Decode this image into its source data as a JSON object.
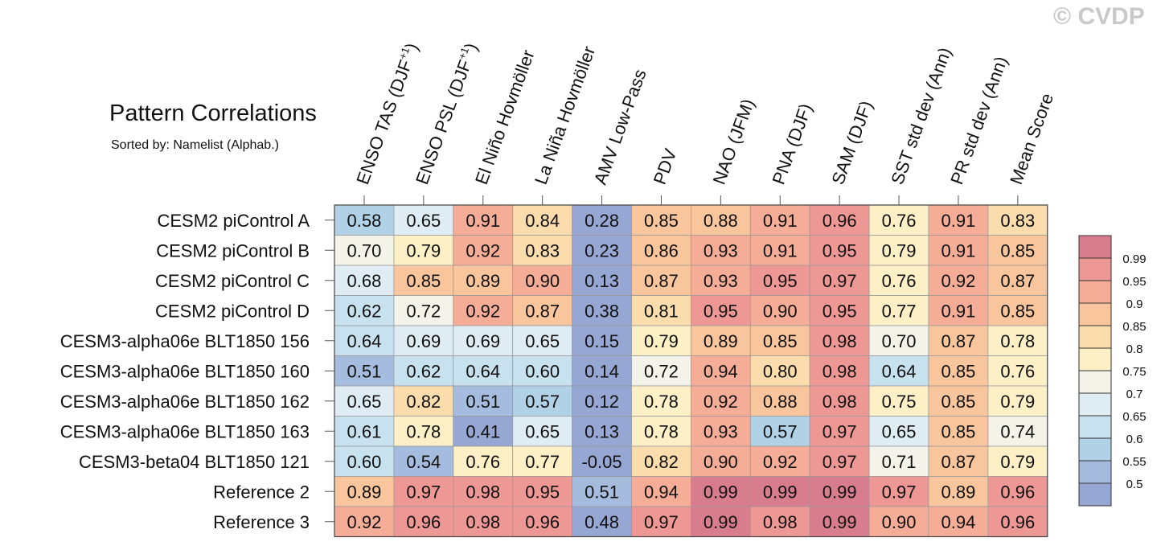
{
  "watermark": "© CVDP",
  "chart_data": {
    "type": "heatmap",
    "title": "Pattern Correlations",
    "subtitle": "Sorted by: Namelist (Alphab.)",
    "columns": [
      "ENSO TAS (DJF+1)",
      "ENSO PSL (DJF+1)",
      "El Niño Hovmöller",
      "La Niña Hovmöller",
      "AMV Low-Pass",
      "PDV",
      "NAO (JFM)",
      "PNA (DJF)",
      "SAM (DJF)",
      "SST std dev (Ann)",
      "PR std dev (Ann)",
      "Mean Score"
    ],
    "columns_rich": [
      {
        "main": "ENSO TAS (DJF",
        "sup": "+1",
        "tail": ")"
      },
      {
        "main": "ENSO PSL (DJF",
        "sup": "+1",
        "tail": ")"
      },
      {
        "main": "El Niño Hovmöller",
        "sup": "",
        "tail": ""
      },
      {
        "main": "La Niña Hovmöller",
        "sup": "",
        "tail": ""
      },
      {
        "main": "AMV Low-Pass",
        "sup": "",
        "tail": ""
      },
      {
        "main": "PDV",
        "sup": "",
        "tail": ""
      },
      {
        "main": "NAO (JFM)",
        "sup": "",
        "tail": ""
      },
      {
        "main": "PNA (DJF)",
        "sup": "",
        "tail": ""
      },
      {
        "main": "SAM (DJF)",
        "sup": "",
        "tail": ""
      },
      {
        "main": "SST std dev (Ann)",
        "sup": "",
        "tail": ""
      },
      {
        "main": "PR std dev (Ann)",
        "sup": "",
        "tail": ""
      },
      {
        "main": "Mean Score",
        "sup": "",
        "tail": ""
      }
    ],
    "rows": [
      "CESM2 piControl A",
      "CESM2 piControl B",
      "CESM2 piControl C",
      "CESM2 piControl D",
      "CESM3-alpha06e BLT1850 156",
      "CESM3-alpha06e BLT1850 160",
      "CESM3-alpha06e BLT1850 162",
      "CESM3-alpha06e BLT1850 163",
      "CESM3-beta04 BLT1850 121",
      "Reference 2",
      "Reference 3"
    ],
    "values": [
      [
        "0.58",
        "0.65",
        "0.91",
        "0.84",
        "0.28",
        "0.85",
        "0.88",
        "0.91",
        "0.96",
        "0.76",
        "0.91",
        "0.83"
      ],
      [
        "0.70",
        "0.79",
        "0.92",
        "0.83",
        "0.23",
        "0.86",
        "0.93",
        "0.91",
        "0.95",
        "0.79",
        "0.91",
        "0.85"
      ],
      [
        "0.68",
        "0.85",
        "0.89",
        "0.90",
        "0.13",
        "0.87",
        "0.93",
        "0.95",
        "0.97",
        "0.76",
        "0.92",
        "0.87"
      ],
      [
        "0.62",
        "0.72",
        "0.92",
        "0.87",
        "0.38",
        "0.81",
        "0.95",
        "0.90",
        "0.95",
        "0.77",
        "0.91",
        "0.85"
      ],
      [
        "0.64",
        "0.69",
        "0.69",
        "0.65",
        "0.15",
        "0.79",
        "0.89",
        "0.85",
        "0.98",
        "0.70",
        "0.87",
        "0.78"
      ],
      [
        "0.51",
        "0.62",
        "0.64",
        "0.60",
        "0.14",
        "0.72",
        "0.94",
        "0.80",
        "0.98",
        "0.64",
        "0.85",
        "0.76"
      ],
      [
        "0.65",
        "0.82",
        "0.51",
        "0.57",
        "0.12",
        "0.78",
        "0.92",
        "0.88",
        "0.98",
        "0.75",
        "0.85",
        "0.79"
      ],
      [
        "0.61",
        "0.78",
        "0.41",
        "0.65",
        "0.13",
        "0.78",
        "0.93",
        "0.57",
        "0.97",
        "0.65",
        "0.85",
        "0.74"
      ],
      [
        "0.60",
        "0.54",
        "0.76",
        "0.77",
        "-0.05",
        "0.82",
        "0.90",
        "0.92",
        "0.97",
        "0.71",
        "0.87",
        "0.79"
      ],
      [
        "0.89",
        "0.97",
        "0.98",
        "0.95",
        "0.51",
        "0.94",
        "0.99",
        "0.99",
        "0.99",
        "0.97",
        "0.89",
        "0.96"
      ],
      [
        "0.92",
        "0.96",
        "0.98",
        "0.96",
        "0.48",
        "0.97",
        "0.99",
        "0.98",
        "0.99",
        "0.90",
        "0.94",
        "0.96"
      ]
    ],
    "colorbar": {
      "levels": [
        "0.99",
        "0.95",
        "0.9",
        "0.85",
        "0.8",
        "0.75",
        "0.7",
        "0.65",
        "0.6",
        "0.55",
        "0.5"
      ],
      "colors": [
        "#d87d8e",
        "#ee9895",
        "#f5ad97",
        "#f8c59d",
        "#fbdcad",
        "#fdefc6",
        "#f3f3e9",
        "#dfecf4",
        "#c8e1ee",
        "#b1d1e6",
        "#a5bcde",
        "#97a7d3"
      ]
    }
  }
}
